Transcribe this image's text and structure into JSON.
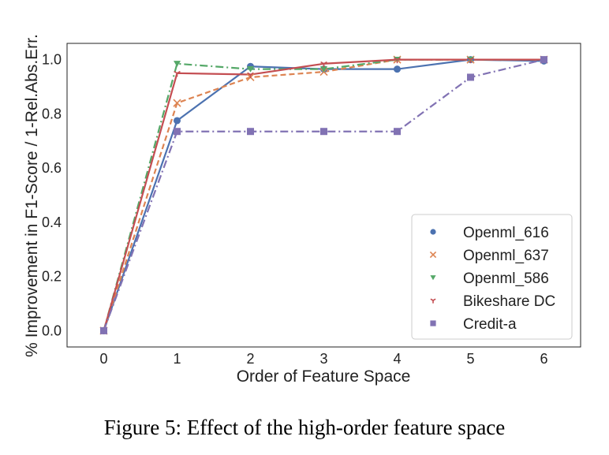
{
  "chart_data": {
    "type": "line",
    "title": "",
    "xlabel": "Order of Feature Space",
    "ylabel": "% Improvement in F1-Score / 1-Rel.Abs.Err.",
    "x": [
      0,
      1,
      2,
      3,
      4,
      5,
      6
    ],
    "xlim": [
      -0.5,
      6.5
    ],
    "ylim": [
      -0.06,
      1.06
    ],
    "xticks": [
      0,
      1,
      2,
      3,
      4,
      5,
      6
    ],
    "yticks": [
      0.0,
      0.2,
      0.4,
      0.6,
      0.8,
      1.0
    ],
    "grid": false,
    "legend_position": "bottom-right",
    "series": [
      {
        "name": "Openml_616",
        "color": "#4c72b0",
        "marker": "circle",
        "linestyle": "solid",
        "values": [
          0.0,
          0.775,
          0.975,
          0.965,
          0.965,
          1.0,
          0.995
        ]
      },
      {
        "name": "Openml_637",
        "color": "#dd8452",
        "marker": "x",
        "linestyle": "dashed",
        "values": [
          0.0,
          0.84,
          0.935,
          0.955,
          1.0,
          1.0,
          1.0
        ]
      },
      {
        "name": "Openml_586",
        "color": "#55a868",
        "marker": "triangle-down",
        "linestyle": "dashdot",
        "values": [
          0.0,
          0.985,
          0.965,
          0.965,
          1.0,
          1.0,
          1.0
        ]
      },
      {
        "name": "Bikeshare DC",
        "color": "#c44e52",
        "marker": "tri-down",
        "linestyle": "solid",
        "values": [
          0.0,
          0.95,
          0.945,
          0.985,
          1.0,
          1.0,
          1.0
        ]
      },
      {
        "name": "Credit-a",
        "color": "#8172b3",
        "marker": "square",
        "linestyle": "dashdot",
        "values": [
          0.0,
          0.735,
          0.735,
          0.735,
          0.735,
          0.935,
          1.0
        ]
      }
    ]
  },
  "caption": "Figure 5: Effect of the high-order feature space"
}
